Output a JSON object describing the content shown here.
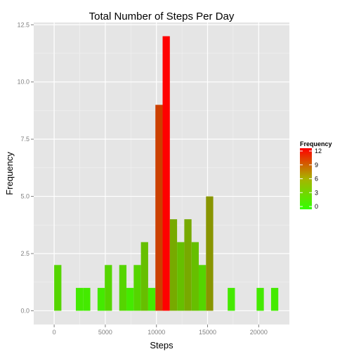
{
  "chart_data": {
    "type": "bar",
    "title": "Total Number of Steps Per Day",
    "xlabel": "Steps",
    "ylabel": "Frequency",
    "xlim": [
      -2000,
      23000
    ],
    "ylim": [
      -0.6,
      12.6
    ],
    "x_ticks": [
      0,
      5000,
      10000,
      15000,
      20000
    ],
    "x_tick_labels": [
      "0",
      "5000",
      "10000",
      "15000",
      "20000"
    ],
    "y_ticks": [
      0,
      2.5,
      5,
      7.5,
      10,
      12.5
    ],
    "y_tick_labels": [
      "0.0",
      "2.5",
      "5.0",
      "7.5",
      "10.0",
      "12.5"
    ],
    "grid": true,
    "bin_width": 707,
    "bins": [
      {
        "x": 353,
        "count": 2
      },
      {
        "x": 2474,
        "count": 1
      },
      {
        "x": 3181,
        "count": 1
      },
      {
        "x": 4595,
        "count": 1
      },
      {
        "x": 5302,
        "count": 2
      },
      {
        "x": 6716,
        "count": 2
      },
      {
        "x": 7423,
        "count": 1
      },
      {
        "x": 8130,
        "count": 2
      },
      {
        "x": 8837,
        "count": 3
      },
      {
        "x": 9544,
        "count": 1
      },
      {
        "x": 10251,
        "count": 9
      },
      {
        "x": 10958,
        "count": 12
      },
      {
        "x": 11665,
        "count": 4
      },
      {
        "x": 12372,
        "count": 3
      },
      {
        "x": 13079,
        "count": 4
      },
      {
        "x": 13786,
        "count": 3
      },
      {
        "x": 14493,
        "count": 2
      },
      {
        "x": 15200,
        "count": 5
      },
      {
        "x": 17321,
        "count": 1
      },
      {
        "x": 20149,
        "count": 1
      },
      {
        "x": 21563,
        "count": 1
      }
    ],
    "legend": {
      "title": "Frequency",
      "placement": "right",
      "ticks": [
        12,
        9,
        6,
        3,
        0
      ],
      "tick_labels": [
        "12",
        "9",
        "6",
        "3",
        "0"
      ],
      "color_low": "#33ff00",
      "color_high": "#ff0000",
      "range": [
        0,
        12
      ]
    },
    "colors": {
      "panel_background": "#e5e5e5",
      "grid_major": "#ffffff",
      "grid_minor": "#f2f2f2"
    }
  }
}
